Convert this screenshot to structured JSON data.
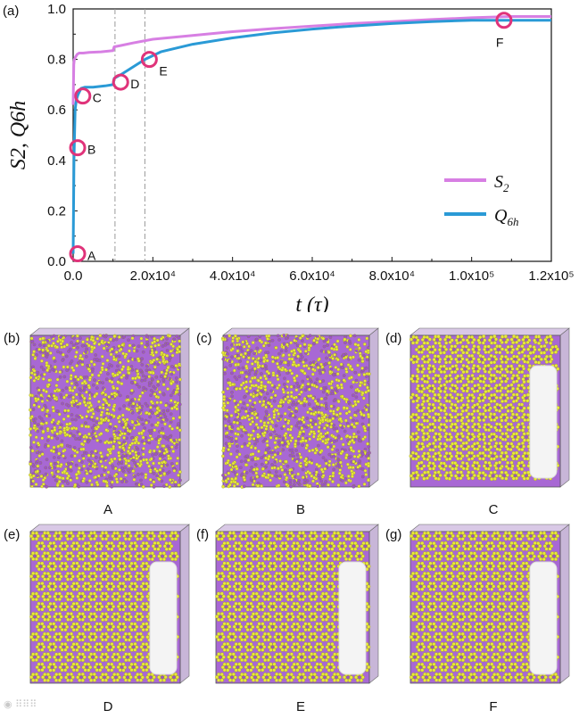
{
  "chart_data": {
    "type": "line",
    "panel_label": "(a)",
    "xlabel": "t (τ)",
    "ylabel": "S2, Q6h",
    "xlim": [
      0,
      120000
    ],
    "ylim": [
      0,
      1.0
    ],
    "xticks": [
      0,
      20000,
      40000,
      60000,
      80000,
      100000,
      120000
    ],
    "xtick_labels": [
      "0.0",
      "2.0x10⁴",
      "4.0x10⁴",
      "6.0x10⁴",
      "8.0x10⁴",
      "1.0x10⁵",
      "1.2x10⁵"
    ],
    "yticks": [
      0.0,
      0.2,
      0.4,
      0.6,
      0.8,
      1.0
    ],
    "ytick_labels": [
      "0.0",
      "0.2",
      "0.4",
      "0.6",
      "0.8",
      "1.0"
    ],
    "series": [
      {
        "name": "S2",
        "color": "#d77fe3",
        "x": [
          0,
          150,
          300,
          600,
          1000,
          1500,
          2500,
          4000,
          7000,
          10000,
          10300,
          12000,
          15000,
          20000,
          30000,
          40000,
          50000,
          60000,
          70000,
          80000,
          90000,
          100000,
          110000,
          120000
        ],
        "y": [
          0.62,
          0.78,
          0.8,
          0.81,
          0.82,
          0.825,
          0.825,
          0.828,
          0.83,
          0.835,
          0.85,
          0.855,
          0.865,
          0.88,
          0.895,
          0.91,
          0.922,
          0.932,
          0.942,
          0.95,
          0.958,
          0.965,
          0.97,
          0.97
        ]
      },
      {
        "name": "Q6h",
        "color": "#2a9ad6",
        "x": [
          0,
          200,
          500,
          800,
          1200,
          2000,
          3000,
          5000,
          8000,
          10000,
          10300,
          12000,
          15000,
          18000,
          22000,
          30000,
          40000,
          50000,
          60000,
          70000,
          80000,
          90000,
          100000,
          110000,
          120000
        ],
        "y": [
          0.03,
          0.4,
          0.6,
          0.64,
          0.66,
          0.685,
          0.69,
          0.69,
          0.695,
          0.7,
          0.725,
          0.74,
          0.77,
          0.8,
          0.83,
          0.86,
          0.885,
          0.905,
          0.92,
          0.932,
          0.942,
          0.95,
          0.955,
          0.955,
          0.955
        ]
      }
    ],
    "markers": [
      {
        "label": "A",
        "x": 0,
        "y": 0.03
      },
      {
        "label": "B",
        "x": 0,
        "y": 0.45
      },
      {
        "label": "C",
        "x": 1300,
        "y": 0.655
      },
      {
        "label": "D",
        "x": 10800,
        "y": 0.71
      },
      {
        "label": "E",
        "x": 18000,
        "y": 0.8
      },
      {
        "label": "F",
        "x": 107000,
        "y": 0.955
      }
    ],
    "vlines": [
      10500,
      18000
    ],
    "legend_position": "bottom-right"
  },
  "snapshots": [
    {
      "panel": "(b)",
      "state": "A",
      "phase": "disordered"
    },
    {
      "panel": "(c)",
      "state": "B",
      "phase": "disordered"
    },
    {
      "panel": "(d)",
      "state": "C",
      "phase": "partial"
    },
    {
      "panel": "(e)",
      "state": "D",
      "phase": "ordered"
    },
    {
      "panel": "(f)",
      "state": "E",
      "phase": "ordered"
    },
    {
      "panel": "(g)",
      "state": "F",
      "phase": "ordered"
    }
  ],
  "colors": {
    "bead_yellow": "#e8e83a",
    "bead_purple": "#9b4fd0",
    "marker": "#e0337a"
  }
}
